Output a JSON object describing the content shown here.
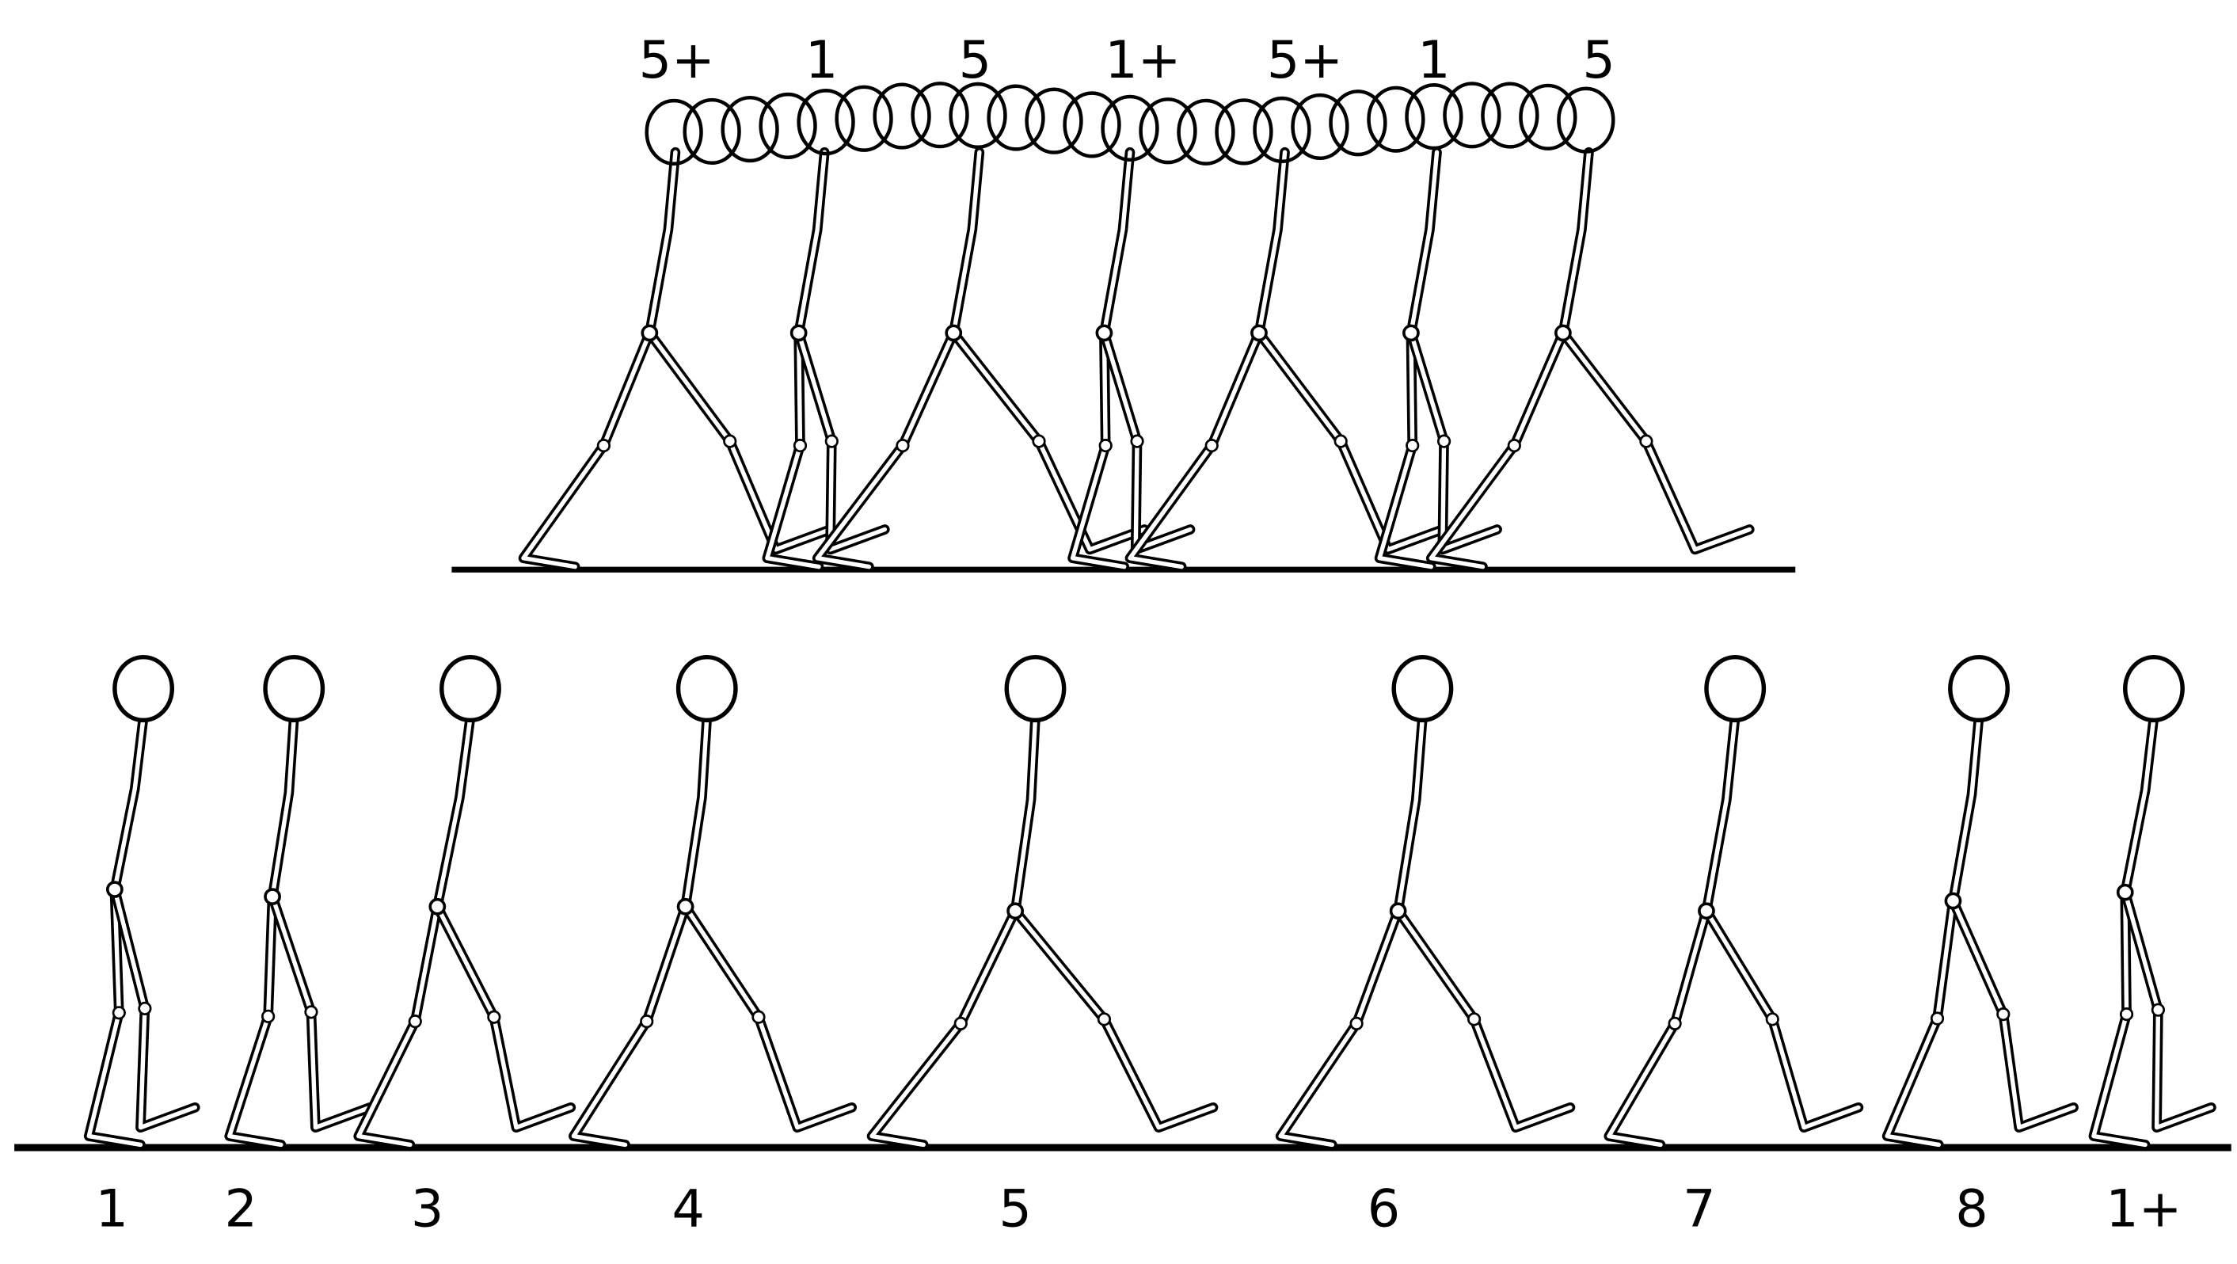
{
  "overlay": {
    "labels": [
      "5+",
      "1",
      "5",
      "1+",
      "5+",
      "1",
      "5"
    ]
  },
  "sequence": {
    "labels": [
      "1",
      "2",
      "3",
      "4",
      "5",
      "6",
      "7",
      "8",
      "1+"
    ]
  }
}
